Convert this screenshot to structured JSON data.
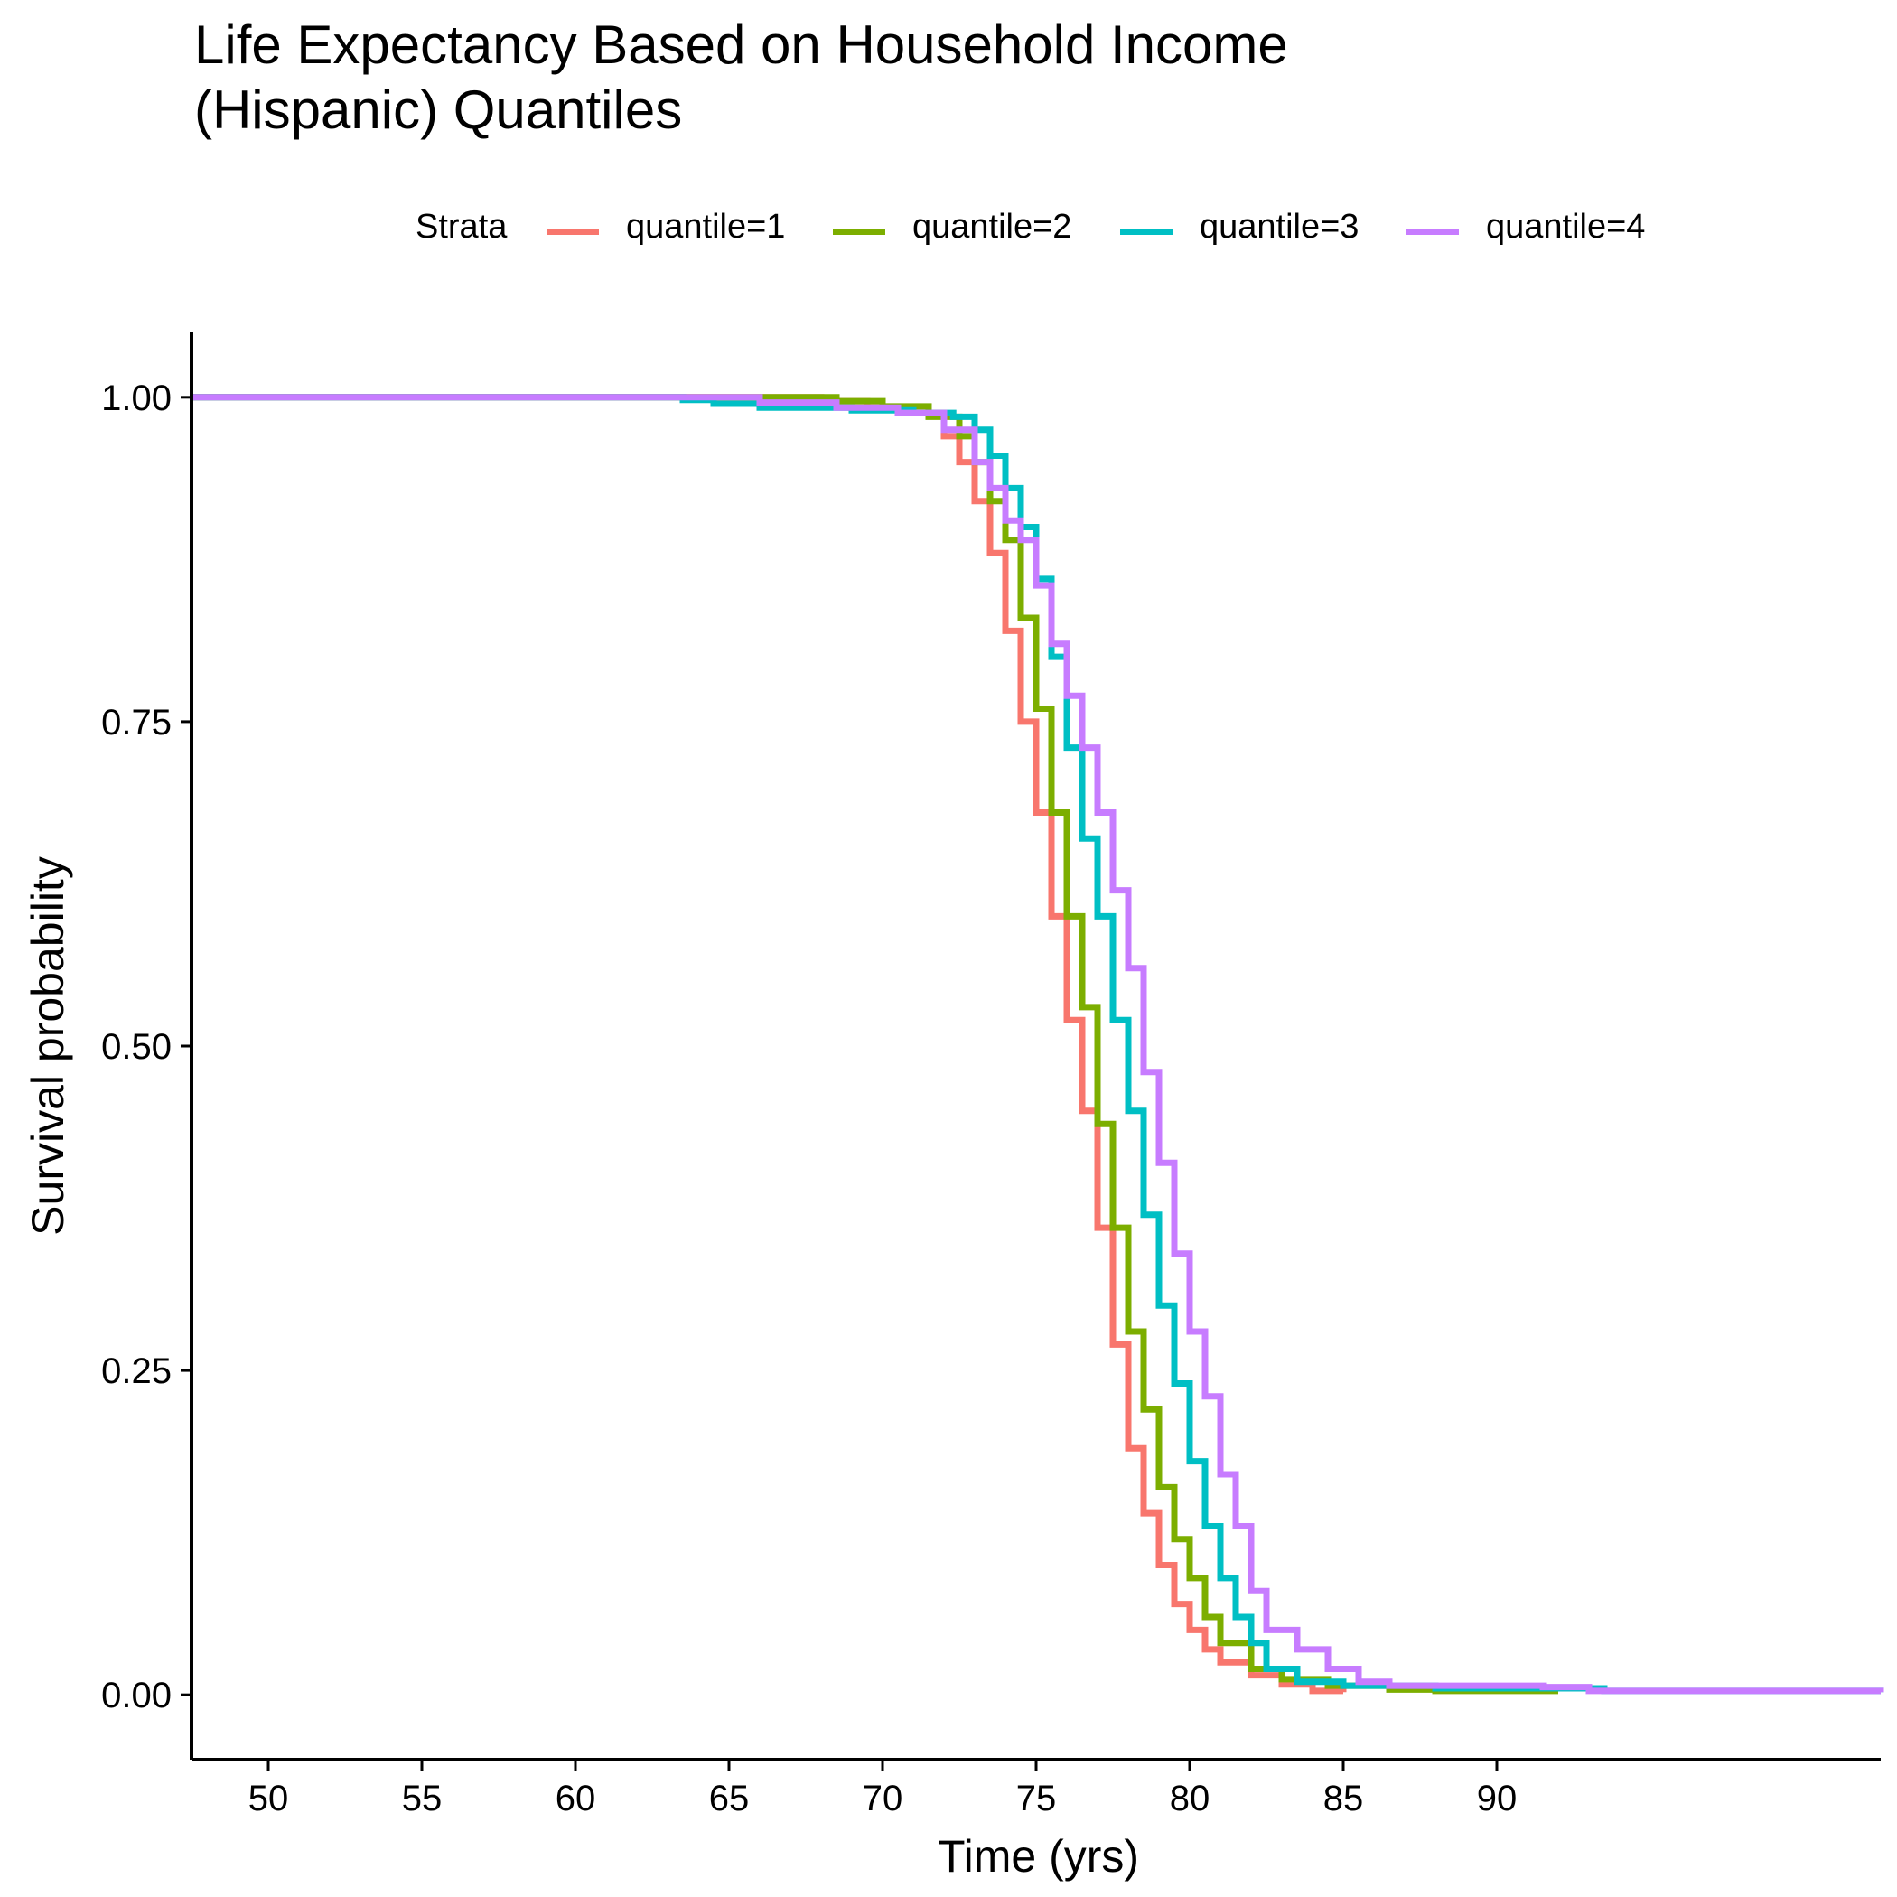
{
  "chart_data": {
    "type": "line",
    "step": true,
    "title_lines": [
      "Life Expectancy Based on Household Income",
      "(Hispanic) Quantiles"
    ],
    "xlabel": "Time (yrs)",
    "ylabel": "Survival probability",
    "xlim": [
      47.5,
      102.5
    ],
    "ylim": [
      -0.05,
      1.05
    ],
    "xticks": [
      "50",
      "55",
      "60",
      "65",
      "70",
      "75",
      "80",
      "85",
      "90"
    ],
    "yticks": [
      "0.00",
      "0.25",
      "0.50",
      "0.75",
      "1.00"
    ],
    "grid": false,
    "legend": {
      "title": "Strata",
      "position": "top"
    },
    "series": [
      {
        "name": "quantile=1",
        "color": "#F8766D",
        "points": [
          [
            47.5,
            1.0
          ],
          [
            66.5,
            1.0
          ],
          [
            68.0,
            0.997
          ],
          [
            69.5,
            0.992
          ],
          [
            71.0,
            0.988
          ],
          [
            72.0,
            0.97
          ],
          [
            72.5,
            0.95
          ],
          [
            73.0,
            0.92
          ],
          [
            73.5,
            0.88
          ],
          [
            74.0,
            0.82
          ],
          [
            74.5,
            0.75
          ],
          [
            75.0,
            0.68
          ],
          [
            75.5,
            0.6
          ],
          [
            76.0,
            0.52
          ],
          [
            76.5,
            0.45
          ],
          [
            77.0,
            0.36
          ],
          [
            77.5,
            0.27
          ],
          [
            78.0,
            0.19
          ],
          [
            78.5,
            0.14
          ],
          [
            79.0,
            0.1
          ],
          [
            79.5,
            0.07
          ],
          [
            80.0,
            0.05
          ],
          [
            80.5,
            0.035
          ],
          [
            81.0,
            0.025
          ],
          [
            82.0,
            0.015
          ],
          [
            83.0,
            0.008
          ],
          [
            84.0,
            0.003
          ],
          [
            85.0,
            0.002
          ]
        ]
      },
      {
        "name": "quantile=2",
        "color": "#7CAE00",
        "points": [
          [
            47.5,
            1.0
          ],
          [
            67.0,
            1.0
          ],
          [
            68.5,
            0.997
          ],
          [
            70.0,
            0.993
          ],
          [
            71.5,
            0.985
          ],
          [
            72.5,
            0.97
          ],
          [
            73.0,
            0.95
          ],
          [
            73.5,
            0.92
          ],
          [
            74.0,
            0.89
          ],
          [
            74.5,
            0.83
          ],
          [
            75.0,
            0.76
          ],
          [
            75.5,
            0.68
          ],
          [
            76.0,
            0.6
          ],
          [
            76.5,
            0.53
          ],
          [
            77.0,
            0.44
          ],
          [
            77.5,
            0.36
          ],
          [
            78.0,
            0.28
          ],
          [
            78.5,
            0.22
          ],
          [
            79.0,
            0.16
          ],
          [
            79.5,
            0.12
          ],
          [
            80.0,
            0.09
          ],
          [
            80.5,
            0.06
          ],
          [
            81.0,
            0.04
          ],
          [
            82.0,
            0.02
          ],
          [
            83.0,
            0.012
          ],
          [
            84.5,
            0.007
          ],
          [
            86.5,
            0.004
          ],
          [
            88.0,
            0.003
          ],
          [
            92.0,
            0.003
          ]
        ]
      },
      {
        "name": "quantile=3",
        "color": "#00BFC4",
        "points": [
          [
            47.5,
            1.0
          ],
          [
            62.8,
            1.0
          ],
          [
            63.5,
            0.998
          ],
          [
            64.5,
            0.995
          ],
          [
            66.0,
            0.992
          ],
          [
            69.0,
            0.99
          ],
          [
            71.0,
            0.988
          ],
          [
            72.3,
            0.985
          ],
          [
            73.0,
            0.975
          ],
          [
            73.5,
            0.955
          ],
          [
            74.0,
            0.93
          ],
          [
            74.5,
            0.9
          ],
          [
            75.0,
            0.86
          ],
          [
            75.5,
            0.8
          ],
          [
            76.0,
            0.73
          ],
          [
            76.5,
            0.66
          ],
          [
            77.0,
            0.6
          ],
          [
            77.5,
            0.52
          ],
          [
            78.0,
            0.45
          ],
          [
            78.5,
            0.37
          ],
          [
            79.0,
            0.3
          ],
          [
            79.5,
            0.24
          ],
          [
            80.0,
            0.18
          ],
          [
            80.5,
            0.13
          ],
          [
            81.0,
            0.09
          ],
          [
            81.5,
            0.06
          ],
          [
            82.0,
            0.04
          ],
          [
            82.5,
            0.02
          ],
          [
            83.5,
            0.01
          ],
          [
            85.0,
            0.007
          ],
          [
            88.0,
            0.005
          ],
          [
            93.5,
            0.003
          ],
          [
            102.5,
            0.002
          ]
        ]
      },
      {
        "name": "quantile=4",
        "color": "#C77CFF",
        "points": [
          [
            47.5,
            1.0
          ],
          [
            63.5,
            1.0
          ],
          [
            66.0,
            0.996
          ],
          [
            68.5,
            0.992
          ],
          [
            70.5,
            0.988
          ],
          [
            72.0,
            0.975
          ],
          [
            73.0,
            0.95
          ],
          [
            73.5,
            0.93
          ],
          [
            74.0,
            0.905
          ],
          [
            74.5,
            0.89
          ],
          [
            75.0,
            0.855
          ],
          [
            75.5,
            0.81
          ],
          [
            76.0,
            0.77
          ],
          [
            76.5,
            0.73
          ],
          [
            77.0,
            0.68
          ],
          [
            77.5,
            0.62
          ],
          [
            78.0,
            0.56
          ],
          [
            78.5,
            0.48
          ],
          [
            79.0,
            0.41
          ],
          [
            79.5,
            0.34
          ],
          [
            80.0,
            0.28
          ],
          [
            80.5,
            0.23
          ],
          [
            81.0,
            0.17
          ],
          [
            81.5,
            0.13
          ],
          [
            82.0,
            0.08
          ],
          [
            82.5,
            0.05
          ],
          [
            83.5,
            0.035
          ],
          [
            84.5,
            0.02
          ],
          [
            85.5,
            0.01
          ],
          [
            86.5,
            0.007
          ],
          [
            91.5,
            0.006
          ],
          [
            93.0,
            0.003
          ],
          [
            102.5,
            0.002
          ]
        ]
      }
    ]
  }
}
